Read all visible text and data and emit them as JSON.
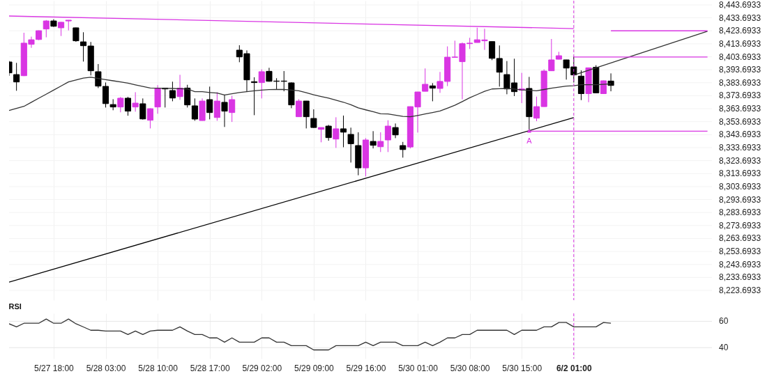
{
  "chart_data": [
    {
      "type": "candlestick",
      "categories": [
        null,
        null,
        null,
        null,
        null,
        null,
        "5/27 18:00",
        null,
        null,
        null,
        null,
        null,
        null,
        "5/28 03:00",
        null,
        null,
        null,
        null,
        null,
        null,
        "5/28 10:00",
        null,
        null,
        null,
        null,
        null,
        null,
        "5/28 17:00",
        null,
        null,
        null,
        null,
        null,
        null,
        "5/29 02:00",
        null,
        null,
        null,
        null,
        null,
        null,
        "5/29 09:00",
        null,
        null,
        null,
        null,
        null,
        null,
        "5/29 16:00",
        null,
        null,
        null,
        null,
        null,
        null,
        "5/30 01:00",
        null,
        null,
        null,
        null,
        null,
        null,
        "5/30 08:00",
        null,
        null,
        null,
        null,
        null,
        null,
        "5/30 15:00",
        null,
        null,
        null,
        null,
        null,
        null,
        "6/2 01:00",
        null,
        null,
        null,
        null,
        null,
        null,
        null,
        null,
        null,
        null,
        null,
        null,
        null,
        null,
        null,
        null,
        null,
        null
      ],
      "ohlc": [
        [
          8399.7,
          8400.5,
          8389.0,
          8391.3
        ],
        [
          8390.0,
          8399.0,
          8377.5,
          8384.3
        ],
        [
          8389.1,
          8422.2,
          8388.8,
          8414.2
        ],
        [
          8413.3,
          8419.2,
          8410.6,
          8416.8
        ],
        [
          8417.0,
          8424.0,
          8416.5,
          8423.8
        ],
        [
          8425.1,
          8432.0,
          8418.7,
          8431.3
        ],
        [
          8431.3,
          8432.6,
          8426.7,
          8427.2
        ],
        [
          8426.0,
          8430.5,
          8419.7,
          8430.3
        ],
        [
          8431.3,
          8432.0,
          8424.0,
          8431.9
        ],
        [
          8426.0,
          8426.2,
          8415.2,
          8416.0
        ],
        [
          8415.2,
          8422.6,
          8400.0,
          8412.2
        ],
        [
          8412.0,
          8415.1,
          8389.3,
          8392.9
        ],
        [
          8392.2,
          8398.1,
          8379.6,
          8381.1
        ],
        [
          8380.9,
          8383.9,
          8364.6,
          8367.6
        ],
        [
          8366.9,
          8371.0,
          8362.5,
          8365.0
        ],
        [
          8365.0,
          8372.7,
          8360.9,
          8371.8
        ],
        [
          8371.8,
          8372.8,
          8358.3,
          8361.8
        ],
        [
          8365.0,
          8376.4,
          8361.4,
          8368.0
        ],
        [
          8367.5,
          8371.6,
          8355.3,
          8355.8
        ],
        [
          8354.8,
          8364.0,
          8348.5,
          8363.7
        ],
        [
          8365.0,
          8381.8,
          8359.8,
          8379.5
        ],
        [
          8379.6,
          8379.8,
          8364.6,
          8378.9
        ],
        [
          8377.7,
          8384.5,
          8369.4,
          8371.9
        ],
        [
          8373.0,
          8389.8,
          8370.5,
          8379.6
        ],
        [
          8379.6,
          8382.1,
          8364.6,
          8366.6
        ],
        [
          8365.9,
          8371.6,
          8354.4,
          8355.7
        ],
        [
          8354.6,
          8371.6,
          8354.5,
          8369.6
        ],
        [
          8370.7,
          8380.7,
          8355.5,
          8360.7
        ],
        [
          8356.9,
          8376.4,
          8354.4,
          8369.6
        ],
        [
          8368.6,
          8374.4,
          8349.6,
          8361.8
        ],
        [
          8360.7,
          8373.6,
          8353.5,
          8370.7
        ],
        [
          8408.8,
          8412.6,
          8399.5,
          8403.6
        ],
        [
          8406.1,
          8408.6,
          8376.6,
          8385.9
        ],
        [
          8384.5,
          8387.9,
          8358.7,
          8383.8
        ],
        [
          8383.8,
          8394.0,
          8371.6,
          8392.2
        ],
        [
          8392.5,
          8395.2,
          8384.5,
          8384.8
        ],
        [
          8385.0,
          8387.2,
          8378.8,
          8384.8
        ],
        [
          8385.0,
          8392.7,
          8377.1,
          8384.8
        ],
        [
          8383.6,
          8384.0,
          8364.1,
          8366.6
        ],
        [
          8357.5,
          8371.0,
          8357.4,
          8369.6
        ],
        [
          8369.6,
          8369.7,
          8348.5,
          8357.5
        ],
        [
          8356.2,
          8363.2,
          8348.9,
          8349.2
        ],
        [
          8347.8,
          8349.3,
          8337.8,
          8349.2
        ],
        [
          8350.3,
          8351.2,
          8339.0,
          8341.4
        ],
        [
          8340.3,
          8357.1,
          8333.5,
          8348.2
        ],
        [
          8348.2,
          8358.4,
          8334.0,
          8345.6
        ],
        [
          8343.9,
          8349.1,
          8322.2,
          8336.7
        ],
        [
          8335.3,
          8345.5,
          8312.4,
          8318.1
        ],
        [
          8318.1,
          8341.0,
          8311.5,
          8339.6
        ],
        [
          8338.5,
          8346.4,
          8333.1,
          8335.5
        ],
        [
          8334.4,
          8345.5,
          8330.3,
          8338.5
        ],
        [
          8339.6,
          8354.8,
          8330.3,
          8350.3
        ],
        [
          8349.2,
          8352.3,
          8341.0,
          8343.5
        ],
        [
          8335.3,
          8338.1,
          8326.0,
          8332.2
        ],
        [
          8334.2,
          8365.4,
          8333.1,
          8365.3
        ],
        [
          8365.0,
          8376.7,
          8345.3,
          8376.6
        ],
        [
          8377.1,
          8394.7,
          8377.0,
          8382.5
        ],
        [
          8381.3,
          8383.4,
          8369.4,
          8379.5
        ],
        [
          8379.3,
          8392.0,
          8375.9,
          8384.7
        ],
        [
          8384.7,
          8411.7,
          8381.1,
          8403.4
        ],
        [
          8403.3,
          8416.1,
          8403.2,
          8403.5
        ],
        [
          8399.9,
          8414.7,
          8370.9,
          8413.8
        ],
        [
          8413.8,
          8418.3,
          8409.7,
          8414.2
        ],
        [
          8414.7,
          8426.1,
          8414.6,
          8416.8
        ],
        [
          8416.0,
          8425.3,
          8409.0,
          8416.7
        ],
        [
          8415.4,
          8415.5,
          8401.1,
          8402.5
        ],
        [
          8402.4,
          8412.4,
          8380.7,
          8391.8
        ],
        [
          8390.0,
          8400.4,
          8374.8,
          8378.9
        ],
        [
          8383.6,
          8402.2,
          8373.4,
          8376.8
        ],
        [
          8378.0,
          8391.3,
          8368.0,
          8378.9
        ],
        [
          8379.3,
          8388.2,
          8346.7,
          8357.5
        ],
        [
          8356.4,
          8373.0,
          8354.1,
          8365.3
        ],
        [
          8365.3,
          8394.0,
          8365.2,
          8392.7
        ],
        [
          8392.9,
          8417.4,
          8392.8,
          8401.3
        ],
        [
          8401.8,
          8407.5,
          8401.7,
          8404.5
        ],
        [
          8401.3,
          8401.4,
          8386.1,
          8395.0
        ],
        [
          8395.9,
          8404.0,
          8383.9,
          8389.7
        ],
        [
          8388.8,
          8393.2,
          8370.3,
          8375.3
        ],
        [
          8375.3,
          8395.3,
          8368.7,
          8395.2
        ],
        [
          8395.6,
          8397.2,
          8375.8,
          8375.9
        ],
        [
          8375.3,
          8385.4,
          8375.2,
          8385.2
        ],
        [
          8385.0,
          8390.9,
          8377.1,
          8381.6
        ],
        null,
        null,
        null,
        null,
        null,
        null,
        null,
        null,
        null,
        null,
        null,
        null,
        null
      ],
      "colors": [
        "#000000",
        "#000000",
        "#d935e3",
        "#d935e3",
        "#d935e3",
        "#d935e3",
        "#000000",
        "#d935e3",
        "#d935e3",
        "#000000",
        "#000000",
        "#000000",
        "#000000",
        "#000000",
        "#000000",
        "#d935e3",
        "#000000",
        "#d935e3",
        "#000000",
        "#d935e3",
        "#d935e3",
        "#000000",
        "#000000",
        "#d935e3",
        "#000000",
        "#000000",
        "#d935e3",
        "#000000",
        "#d935e3",
        "#000000",
        "#d935e3",
        "#000000",
        "#000000",
        "#000000",
        "#d935e3",
        "#000000",
        "#000000",
        "#000000",
        "#000000",
        "#d935e3",
        "#000000",
        "#000000",
        "#d935e3",
        "#000000",
        "#d935e3",
        "#000000",
        "#000000",
        "#000000",
        "#d935e3",
        "#000000",
        "#d935e3",
        "#d935e3",
        "#000000",
        "#000000",
        "#d935e3",
        "#d935e3",
        "#d935e3",
        "#000000",
        "#d935e3",
        "#d935e3",
        "#d935e3",
        "#d935e3",
        "#d935e3",
        "#d935e3",
        "#d935e3",
        "#000000",
        "#000000",
        "#000000",
        "#000000",
        "#d935e3",
        "#000000",
        "#d935e3",
        "#d935e3",
        "#d935e3",
        "#d935e3",
        "#000000",
        "#000000",
        "#000000",
        "#d935e3",
        "#000000",
        "#d935e3",
        "#000000",
        null,
        null,
        null,
        null,
        null,
        null,
        null,
        null,
        null,
        null,
        null,
        null,
        null
      ],
      "series": [
        {
          "type": "line",
          "color": "#333333",
          "values": [
            8362.3,
            8363.9,
            8365.5,
            8368.6,
            8371.8,
            8374.9,
            8378.0,
            8381.2,
            8384.3,
            8385.8,
            8387.3,
            8387.9,
            8387.0,
            8386.1,
            8385.2,
            8384.3,
            8383.4,
            8382.1,
            8380.9,
            8379.6,
            8379.5,
            8379.4,
            8379.3,
            8379.1,
            8378.9,
            8376.8,
            8376.8,
            8376.2,
            8375.7,
            8374.3,
            8375.2,
            8376.2,
            8376.8,
            8377.5,
            8378.0,
            8378.4,
            8378.5,
            8378.6,
            8378.0,
            8377.5,
            8376.0,
            8374.4,
            8373.1,
            8371.8,
            8370.2,
            8368.7,
            8366.8,
            8364.3,
            8362.8,
            8361.4,
            8359.8,
            8359.6,
            8358.7,
            8357.8,
            8357.5,
            8358.5,
            8359.6,
            8360.7,
            8361.9,
            8364.1,
            8366.4,
            8369.2,
            8372.1,
            8374.6,
            8377.1,
            8378.9,
            8379.1,
            8379.3,
            8378.8,
            8378.2,
            8377.9,
            8377.5,
            8378.5,
            8379.5,
            8380.3,
            8381.1,
            8381.4,
            8382.2,
            8382.2,
            8382.2,
            8382.5,
            8382.9,
            null,
            null,
            null,
            null,
            null,
            null,
            null,
            null,
            null,
            null,
            null,
            null,
            null
          ]
        },
        {
          "type": "line",
          "color": "#d935e3",
          "values": [
            8435.1,
            null,
            null,
            null,
            null,
            null,
            null,
            null,
            null,
            null,
            null,
            null,
            null,
            null,
            null,
            null,
            null,
            null,
            null,
            null,
            null,
            null,
            null,
            null,
            null,
            null,
            null,
            null,
            null,
            null,
            null,
            null,
            null,
            null,
            null,
            null,
            null,
            null,
            null,
            null,
            null,
            null,
            null,
            null,
            null,
            null,
            null,
            null,
            null,
            null,
            null,
            null,
            null,
            null,
            null,
            null,
            null,
            null,
            null,
            null,
            null,
            null,
            null,
            null,
            null,
            null,
            null,
            null,
            null,
            null,
            null,
            null,
            null,
            null,
            null,
            null,
            8425.4,
            null,
            null,
            null,
            null,
            null,
            null,
            null,
            null,
            null,
            null,
            null,
            null,
            null,
            null,
            null,
            null,
            null,
            null
          ]
        },
        {
          "type": "line",
          "color": "#000000",
          "values": [
            8230.1,
            null,
            null,
            null,
            null,
            null,
            null,
            null,
            null,
            null,
            null,
            null,
            null,
            null,
            null,
            null,
            null,
            null,
            null,
            null,
            null,
            null,
            null,
            null,
            null,
            null,
            null,
            null,
            null,
            null,
            null,
            null,
            null,
            null,
            null,
            null,
            null,
            null,
            null,
            null,
            null,
            null,
            null,
            null,
            null,
            null,
            null,
            null,
            null,
            null,
            null,
            null,
            null,
            null,
            null,
            null,
            null,
            null,
            null,
            null,
            null,
            null,
            null,
            null,
            null,
            null,
            null,
            null,
            null,
            null,
            null,
            null,
            null,
            null,
            null,
            null,
            8356.8,
            null,
            null,
            null,
            null,
            null,
            null,
            null,
            null,
            null,
            null,
            null,
            null,
            null,
            null,
            null,
            null,
            null,
            null
          ]
        },
        {
          "type": "line",
          "color": "#333333",
          "values": [
            null,
            null,
            null,
            null,
            null,
            null,
            null,
            null,
            null,
            null,
            null,
            null,
            null,
            null,
            null,
            null,
            null,
            null,
            null,
            null,
            null,
            null,
            null,
            null,
            null,
            null,
            null,
            null,
            null,
            null,
            null,
            null,
            null,
            null,
            null,
            null,
            null,
            null,
            null,
            null,
            null,
            null,
            null,
            null,
            null,
            null,
            null,
            null,
            null,
            null,
            null,
            null,
            null,
            null,
            null,
            null,
            null,
            null,
            null,
            null,
            null,
            null,
            null,
            null,
            null,
            null,
            null,
            null,
            null,
            null,
            null,
            null,
            null,
            null,
            null,
            null,
            8389.5,
            null,
            null,
            null,
            null,
            null,
            null,
            null,
            null,
            null,
            null,
            null,
            null,
            null,
            null,
            null,
            null,
            null,
            8423.3
          ]
        },
        {
          "type": "line",
          "color": "#d935e3",
          "values": [
            null,
            null,
            null,
            null,
            null,
            null,
            null,
            null,
            null,
            null,
            null,
            null,
            null,
            null,
            null,
            null,
            null,
            null,
            null,
            null,
            null,
            null,
            null,
            null,
            null,
            null,
            null,
            null,
            null,
            null,
            null,
            null,
            null,
            null,
            null,
            null,
            null,
            null,
            null,
            null,
            null,
            null,
            null,
            null,
            null,
            null,
            null,
            null,
            null,
            null,
            null,
            null,
            null,
            null,
            null,
            null,
            null,
            null,
            null,
            null,
            null,
            null,
            null,
            null,
            null,
            null,
            null,
            null,
            null,
            null,
            null,
            null,
            null,
            null,
            null,
            null,
            8403.5,
            null,
            null,
            null,
            null,
            null,
            null,
            null,
            null,
            null,
            null,
            null,
            null,
            null,
            null,
            null,
            null,
            null,
            8403.5
          ]
        },
        {
          "type": "line",
          "color": "#d935e3",
          "values": [
            null,
            null,
            null,
            null,
            null,
            null,
            null,
            null,
            null,
            null,
            null,
            null,
            null,
            null,
            null,
            null,
            null,
            null,
            null,
            null,
            null,
            null,
            null,
            null,
            null,
            null,
            null,
            null,
            null,
            null,
            null,
            null,
            null,
            null,
            null,
            null,
            null,
            null,
            null,
            null,
            null,
            null,
            null,
            null,
            null,
            null,
            null,
            null,
            null,
            null,
            null,
            null,
            null,
            null,
            null,
            null,
            null,
            null,
            null,
            null,
            null,
            null,
            null,
            null,
            null,
            null,
            null,
            null,
            null,
            null,
            null,
            null,
            null,
            null,
            null,
            null,
            null,
            null,
            null,
            null,
            null,
            8423.7,
            null,
            null,
            null,
            null,
            null,
            null,
            null,
            null,
            null,
            null,
            null,
            null,
            8423.7
          ]
        },
        {
          "type": "line",
          "color": "#d935e3",
          "values": [
            null,
            null,
            null,
            null,
            null,
            null,
            null,
            null,
            null,
            null,
            null,
            null,
            null,
            null,
            null,
            null,
            null,
            null,
            null,
            null,
            null,
            null,
            null,
            null,
            null,
            null,
            null,
            null,
            null,
            null,
            null,
            null,
            null,
            null,
            null,
            null,
            null,
            null,
            null,
            null,
            null,
            null,
            null,
            null,
            null,
            null,
            null,
            null,
            null,
            null,
            null,
            null,
            null,
            null,
            null,
            null,
            null,
            null,
            null,
            null,
            null,
            null,
            null,
            null,
            null,
            null,
            null,
            null,
            null,
            null,
            8346.4,
            null,
            null,
            null,
            null,
            null,
            null,
            null,
            null,
            null,
            null,
            null,
            null,
            null,
            null,
            null,
            null,
            null,
            null,
            null,
            null,
            null,
            null,
            null,
            8346.4
          ]
        },
        {
          "type": "scatter",
          "color": "#d935e3",
          "marker": "triangle",
          "values": [
            null,
            null,
            null,
            null,
            null,
            null,
            null,
            null,
            null,
            null,
            null,
            null,
            null,
            null,
            null,
            null,
            null,
            null,
            null,
            null,
            null,
            null,
            null,
            null,
            null,
            null,
            null,
            null,
            null,
            null,
            null,
            null,
            null,
            null,
            null,
            null,
            null,
            null,
            null,
            null,
            null,
            null,
            null,
            null,
            null,
            null,
            null,
            null,
            null,
            null,
            null,
            null,
            null,
            null,
            null,
            null,
            null,
            null,
            null,
            null,
            null,
            null,
            null,
            null,
            null,
            null,
            null,
            null,
            null,
            null,
            8346.7,
            null,
            null,
            null,
            null,
            null,
            null,
            null,
            null,
            null,
            null,
            null,
            null,
            null,
            null,
            null,
            null,
            null,
            null,
            null,
            null,
            null,
            null,
            null,
            null
          ],
          "value_labels": [
            null,
            null,
            null,
            null,
            null,
            null,
            null,
            null,
            null,
            null,
            null,
            null,
            null,
            null,
            null,
            null,
            null,
            null,
            null,
            null,
            null,
            null,
            null,
            null,
            null,
            null,
            null,
            null,
            null,
            null,
            null,
            null,
            null,
            null,
            null,
            null,
            null,
            null,
            null,
            null,
            null,
            null,
            null,
            null,
            null,
            null,
            null,
            null,
            null,
            null,
            null,
            null,
            null,
            null,
            null,
            null,
            null,
            null,
            null,
            null,
            null,
            null,
            null,
            null,
            null,
            null,
            null,
            null,
            null,
            null,
            "A",
            null,
            null,
            null,
            null,
            null,
            null,
            null,
            null,
            null,
            null,
            null,
            null,
            null,
            null,
            null,
            null,
            null,
            null,
            null,
            null,
            null,
            null,
            null,
            null
          ]
        }
      ],
      "ref_lines": [
        {
          "axis": "x",
          "value": "6/2 01:00",
          "color": "#d935e3",
          "line_style": "dashed"
        }
      ],
      "ylim": [
        8216.2,
        8446.9
      ],
      "yticks": [
        {
          "value": 8443.6933,
          "label": "8,443.6933"
        },
        {
          "value": 8433.6933,
          "label": "8,433.6933"
        },
        {
          "value": 8423.6933,
          "label": "8,423.6933"
        },
        {
          "value": 8413.6933,
          "label": "8,413.6933"
        },
        {
          "value": 8403.6933,
          "label": "8,403.6933"
        },
        {
          "value": 8393.6933,
          "label": "8,393.6933"
        },
        {
          "value": 8383.6933,
          "label": "8,383.6933"
        },
        {
          "value": 8373.6933,
          "label": "8,373.6933"
        },
        {
          "value": 8363.6933,
          "label": "8,363.6933"
        },
        {
          "value": 8353.6933,
          "label": "8,353.6933"
        },
        {
          "value": 8343.6933,
          "label": "8,343.6933"
        },
        {
          "value": 8333.6933,
          "label": "8,333.6933"
        },
        {
          "value": 8323.6933,
          "label": "8,323.6933"
        },
        {
          "value": 8313.6933,
          "label": "8,313.6933"
        },
        {
          "value": 8303.6933,
          "label": "8,303.6933"
        },
        {
          "value": 8293.6933,
          "label": "8,293.6933"
        },
        {
          "value": 8283.6933,
          "label": "8,283.6933"
        },
        {
          "value": 8273.6933,
          "label": "8,273.6933"
        },
        {
          "value": 8263.6933,
          "label": "8,263.6933"
        },
        {
          "value": 8253.6933,
          "label": "8,253.6933"
        },
        {
          "value": 8243.6933,
          "label": "8,243.6933"
        },
        {
          "value": 8233.6933,
          "label": "8,233.6933"
        },
        {
          "value": 8223.6933,
          "label": "8,223.6933"
        }
      ],
      "grid": true,
      "tick_labels": "y"
    },
    {
      "type": "line",
      "title": "RSI",
      "categories": [
        null,
        null,
        null,
        null,
        null,
        null,
        "5/27 18:00",
        null,
        null,
        null,
        null,
        null,
        null,
        "5/28 03:00",
        null,
        null,
        null,
        null,
        null,
        null,
        "5/28 10:00",
        null,
        null,
        null,
        null,
        null,
        null,
        "5/28 17:00",
        null,
        null,
        null,
        null,
        null,
        null,
        "5/29 02:00",
        null,
        null,
        null,
        null,
        null,
        null,
        "5/29 09:00",
        null,
        null,
        null,
        null,
        null,
        null,
        "5/29 16:00",
        null,
        null,
        null,
        null,
        null,
        null,
        "5/30 01:00",
        null,
        null,
        null,
        null,
        null,
        null,
        "5/30 08:00",
        null,
        null,
        null,
        null,
        null,
        null,
        "5/30 15:00",
        null,
        null,
        null,
        null,
        null,
        null,
        "6/2 01:00",
        null,
        null,
        null,
        null,
        null,
        null,
        null,
        null,
        null,
        null,
        null,
        null,
        null,
        null,
        null,
        null,
        null,
        null
      ],
      "values": [
        58.1,
        55.8,
        58.5,
        58.5,
        58.5,
        61.7,
        58.5,
        58.5,
        61.7,
        58.1,
        55.7,
        53.2,
        53.2,
        52.6,
        52.6,
        52.6,
        50.0,
        52.6,
        50.0,
        52.6,
        53.2,
        53.2,
        53.2,
        55.8,
        52.6,
        50.0,
        50.0,
        47.4,
        47.4,
        44.2,
        47.4,
        44.2,
        44.2,
        44.2,
        47.4,
        47.4,
        44.2,
        44.2,
        41.5,
        41.5,
        41.5,
        38.3,
        38.3,
        38.3,
        41.5,
        41.5,
        41.5,
        41.5,
        44.2,
        41.5,
        44.2,
        44.2,
        44.2,
        41.5,
        41.5,
        41.5,
        44.2,
        41.5,
        44.2,
        47.4,
        47.4,
        50.0,
        50.0,
        53.2,
        53.2,
        53.2,
        53.2,
        53.2,
        50.0,
        53.2,
        53.2,
        53.2,
        55.8,
        55.8,
        59.1,
        59.1,
        55.8,
        55.8,
        55.8,
        55.8,
        59.1,
        58.5,
        null,
        null,
        null,
        null,
        null,
        null,
        null,
        null,
        null,
        null,
        null,
        null,
        null
      ],
      "color": "#333333",
      "ref_lines": [
        {
          "axis": "x",
          "value": "6/2 01:00",
          "color": "#d935e3",
          "line_style": "dashed"
        }
      ],
      "ylim": [
        31.7,
        66
      ],
      "yticks": [
        40,
        60
      ],
      "grid": true
    }
  ]
}
